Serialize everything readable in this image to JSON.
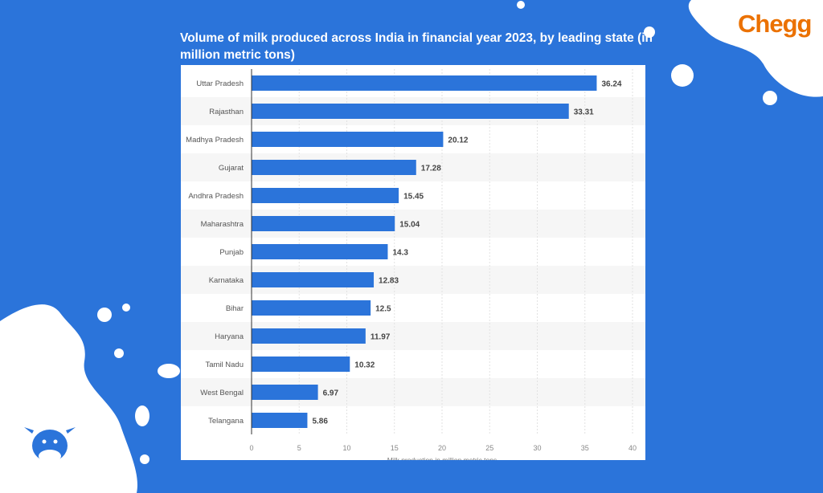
{
  "brand": "Chegg",
  "colors": {
    "background": "#2b74da",
    "bar": "#2b74da",
    "brand": "#eb7100"
  },
  "chart_data": {
    "type": "bar",
    "orientation": "horizontal",
    "title": "Volume of milk produced across India in financial year 2023, by leading state (in million metric tons)",
    "xlabel": "Milk production in million metric tons",
    "ylabel": "",
    "xlim": [
      0,
      40
    ],
    "ticks": [
      "0",
      "5",
      "10",
      "15",
      "20",
      "25",
      "30",
      "35",
      "40"
    ],
    "categories": [
      "Uttar Pradesh",
      "Rajasthan",
      "Madhya Pradesh",
      "Gujarat",
      "Andhra Pradesh",
      "Maharashtra",
      "Punjab",
      "Karnataka",
      "Bihar",
      "Haryana",
      "Tamil Nadu",
      "West Bengal",
      "Telangana"
    ],
    "values": [
      36.24,
      33.31,
      20.12,
      17.28,
      15.45,
      15.04,
      14.3,
      12.83,
      12.5,
      11.97,
      10.32,
      6.97,
      5.86
    ],
    "labels": [
      "36.24",
      "33.31",
      "20.12",
      "17.28",
      "15.45",
      "15.04",
      "14.3",
      "12.83",
      "12.5",
      "11.97",
      "10.32",
      "6.97",
      "5.86"
    ],
    "grid": true
  }
}
